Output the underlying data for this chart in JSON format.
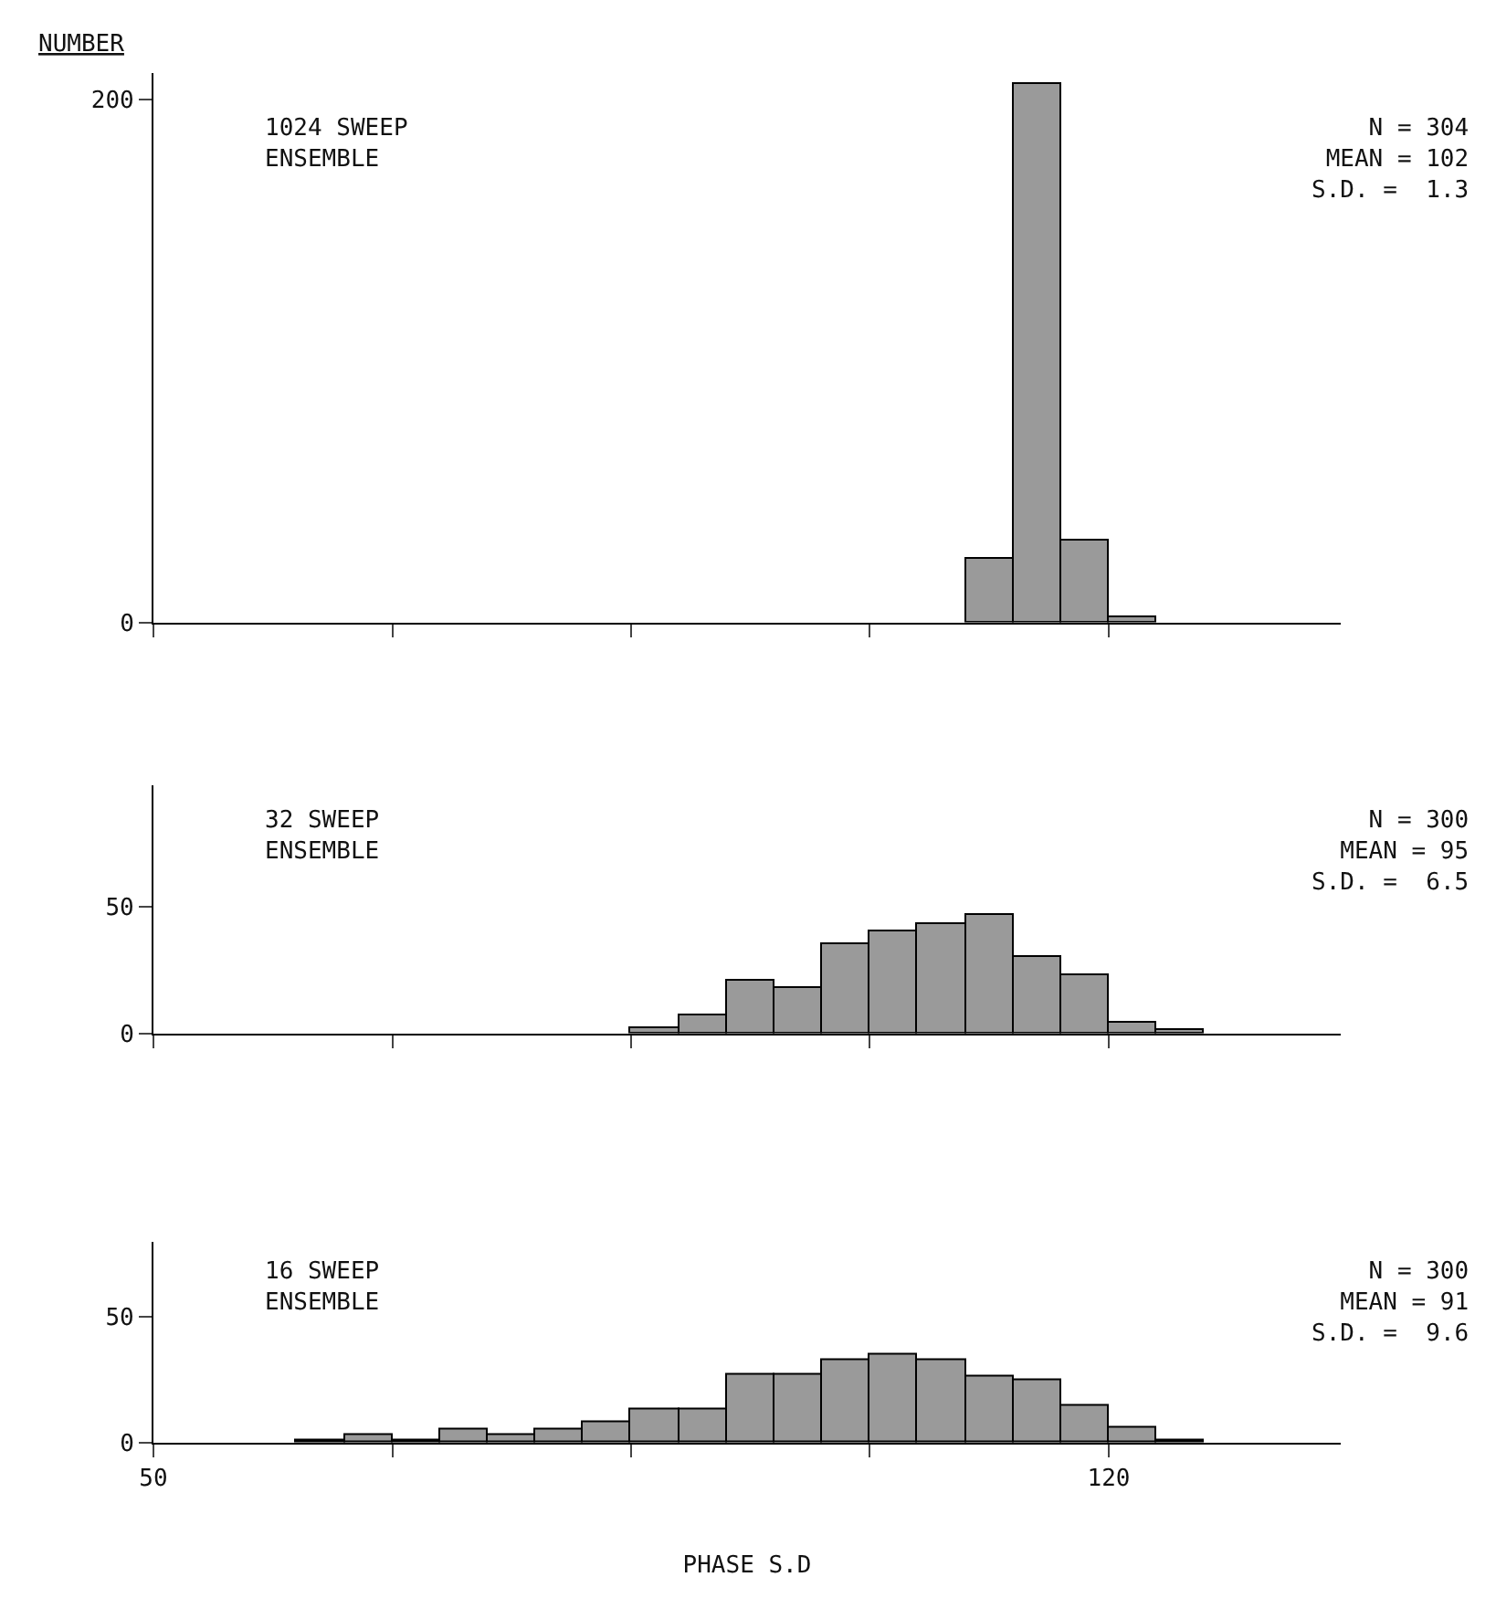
{
  "chart_data": [
    {
      "type": "histogram",
      "ylabel": "NUMBER",
      "bins": [
        109.5,
        113,
        116.5,
        120,
        123.5
      ],
      "values": [
        24,
        206,
        31,
        2
      ],
      "color": "#9a9a9a",
      "xlim": [
        50,
        137
      ],
      "xticks": [
        {
          "value": 50,
          "label": null
        },
        {
          "value": 67.5,
          "label": null
        },
        {
          "value": 85,
          "label": null
        },
        {
          "value": 102.5,
          "label": null
        },
        {
          "value": 120,
          "label": null
        }
      ],
      "ylim": [
        0,
        210
      ],
      "yticks": [
        0,
        200
      ],
      "tick_labels": "y",
      "annotations": [
        "1024 SWEEP\nENSEMBLE",
        "N = 304\nMEAN = 102\nS.D. =  1.3"
      ]
    },
    {
      "type": "histogram",
      "bins": [
        85,
        88.5,
        92,
        95.5,
        99,
        102.5,
        106,
        109.5,
        113,
        116.5,
        120,
        123.5,
        127
      ],
      "values": [
        2,
        7,
        21,
        18,
        35,
        40,
        43,
        47,
        30,
        23,
        4,
        1
      ],
      "color": "#9a9a9a",
      "xlim": [
        50,
        137
      ],
      "xticks": [
        {
          "value": 50,
          "label": null
        },
        {
          "value": 67.5,
          "label": null
        },
        {
          "value": 85,
          "label": null
        },
        {
          "value": 102.5,
          "label": null
        },
        {
          "value": 120,
          "label": null
        }
      ],
      "ylim": [
        0,
        98
      ],
      "yticks": [
        0,
        50
      ],
      "tick_labels": "y",
      "annotations": [
        "32 SWEEP\nENSEMBLE",
        "N = 300\nMEAN = 95\nS.D. =  6.5"
      ]
    },
    {
      "type": "histogram",
      "xlabel": "PHASE S.D",
      "bins": [
        60.5,
        64,
        67.5,
        71,
        74.5,
        78,
        81.5,
        85,
        88.5,
        92,
        95.5,
        99,
        102.5,
        106,
        109.5,
        113,
        116.5,
        120,
        123.5,
        127
      ],
      "values": [
        1,
        3,
        1,
        5,
        3,
        5,
        8,
        13,
        13,
        27,
        27,
        33,
        35,
        33,
        26,
        25,
        15,
        6,
        1
      ],
      "color": "#9a9a9a",
      "xlim": [
        50,
        137
      ],
      "xticks": [
        50,
        {
          "value": 67.5,
          "label": null
        },
        {
          "value": 85,
          "label": null
        },
        {
          "value": 102.5,
          "label": null
        },
        120
      ],
      "ylim": [
        0,
        80
      ],
      "yticks": [
        0,
        50
      ],
      "annotations": [
        "16 SWEEP\nENSEMBLE",
        "N = 300\nMEAN = 91\nS.D. =  9.6"
      ]
    }
  ]
}
